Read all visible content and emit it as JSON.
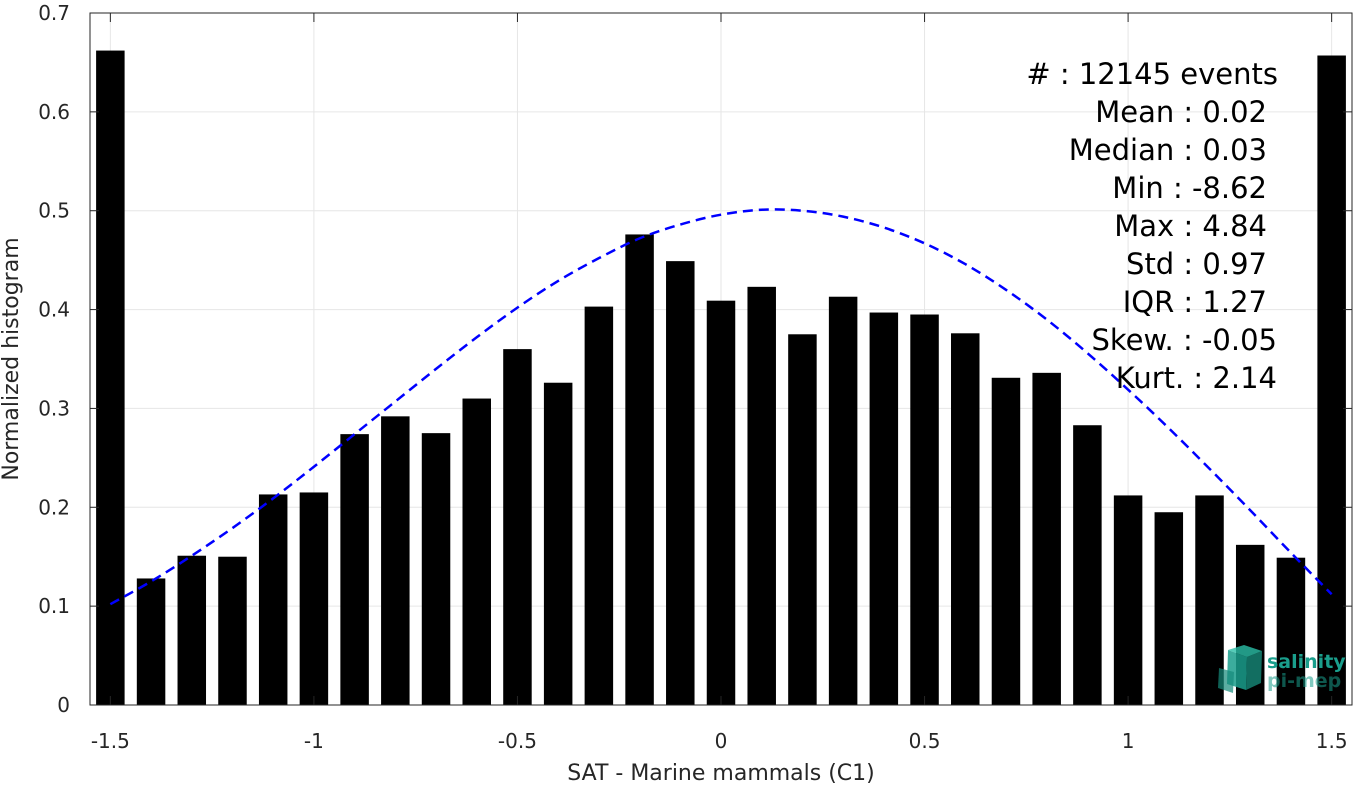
{
  "chart_data": {
    "type": "bar",
    "title": "",
    "xlabel": "SAT - Marine mammals (C1)",
    "ylabel": "Normalized histogram",
    "xlim": [
      -1.55,
      1.55
    ],
    "ylim": [
      0,
      0.7
    ],
    "xticks": [
      -1.5,
      -1,
      -0.5,
      0,
      0.5,
      1,
      1.5
    ],
    "xtick_labels": [
      "-1.5",
      "-1",
      "-0.5",
      "0",
      "0.5",
      "1",
      "1.5"
    ],
    "yticks": [
      0,
      0.1,
      0.2,
      0.3,
      0.4,
      0.5,
      0.6,
      0.7
    ],
    "ytick_labels": [
      "0",
      "0.1",
      "0.2",
      "0.3",
      "0.4",
      "0.5",
      "0.6",
      "0.7"
    ],
    "grid": true,
    "bar_color": "#000000",
    "bars": {
      "x": [
        -1.5,
        -1.4,
        -1.3,
        -1.2,
        -1.1,
        -1.0,
        -0.9,
        -0.8,
        -0.7,
        -0.6,
        -0.5,
        -0.4,
        -0.3,
        -0.2,
        -0.1,
        0.0,
        0.1,
        0.2,
        0.3,
        0.4,
        0.5,
        0.6,
        0.7,
        0.8,
        0.9,
        1.0,
        1.1,
        1.2,
        1.3,
        1.4,
        1.5
      ],
      "values": [
        0.662,
        0.128,
        0.151,
        0.15,
        0.213,
        0.215,
        0.274,
        0.292,
        0.275,
        0.31,
        0.36,
        0.326,
        0.403,
        0.476,
        0.449,
        0.409,
        0.423,
        0.375,
        0.413,
        0.397,
        0.395,
        0.376,
        0.331,
        0.336,
        0.283,
        0.212,
        0.195,
        0.212,
        0.162,
        0.149,
        0.657
      ]
    },
    "fit_curve": {
      "style": "dashed",
      "color": "#0000ff",
      "x": [
        -1.5,
        -1.4,
        -1.3,
        -1.2,
        -1.1,
        -1.0,
        -0.9,
        -0.8,
        -0.7,
        -0.6,
        -0.5,
        -0.4,
        -0.3,
        -0.2,
        -0.1,
        0.0,
        0.1,
        0.2,
        0.3,
        0.4,
        0.5,
        0.6,
        0.7,
        0.8,
        0.9,
        1.0,
        1.1,
        1.2,
        1.3,
        1.4,
        1.5
      ],
      "values": [
        0.102,
        0.125,
        0.151,
        0.179,
        0.209,
        0.241,
        0.274,
        0.307,
        0.34,
        0.372,
        0.402,
        0.429,
        0.452,
        0.472,
        0.486,
        0.496,
        0.501,
        0.5,
        0.494,
        0.483,
        0.467,
        0.446,
        0.42,
        0.39,
        0.356,
        0.319,
        0.28,
        0.239,
        0.197,
        0.154,
        0.112
      ]
    },
    "annotations": [
      "#  : 12145 events",
      "Mean : 0.02",
      "Median : 0.03",
      "Min : -8.62",
      "Max : 4.84",
      "Std : 0.97",
      "IQR : 1.27",
      "Skew. : -0.05",
      "Kurt. : 2.14"
    ]
  },
  "logo": {
    "line1": "salinity",
    "line2": "pi-mep",
    "color": "#1a9e8c"
  }
}
